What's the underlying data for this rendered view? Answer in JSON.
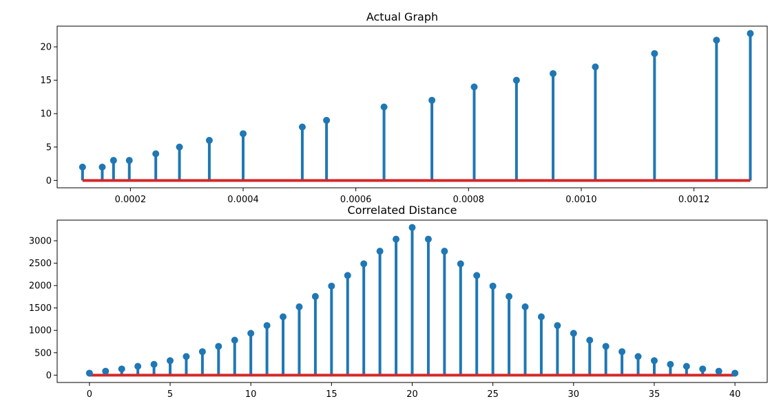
{
  "chart_data": [
    {
      "type": "stem",
      "title": "Actual Graph",
      "xlabel": "",
      "ylabel": "",
      "xlim": [
        7e-05,
        0.00133
      ],
      "ylim": [
        -1.1,
        23.1
      ],
      "xticks": [
        0.0002,
        0.0004,
        0.0006,
        0.0008,
        0.001,
        0.0012
      ],
      "xtick_labels": [
        "0.0002",
        "0.0004",
        "0.0006",
        "0.0008",
        "0.0010",
        "0.0012"
      ],
      "yticks": [
        0,
        5,
        10,
        15,
        20
      ],
      "ytick_labels": [
        "0",
        "5",
        "10",
        "15",
        "20"
      ],
      "stem_color": "#1f77b4",
      "baseline_color": "#d62728",
      "baseline": 0,
      "x": [
        0.000115,
        0.00015,
        0.00017,
        0.000198,
        0.000245,
        0.000287,
        0.00034,
        0.0004,
        0.000505,
        0.000548,
        0.00065,
        0.000735,
        0.00081,
        0.000885,
        0.00095,
        0.001025,
        0.00113,
        0.00124,
        0.0013
      ],
      "y": [
        2,
        2,
        3,
        3,
        4,
        5,
        6,
        7,
        8,
        9,
        11,
        12,
        14,
        15,
        16,
        17,
        19,
        21,
        22
      ]
    },
    {
      "type": "stem",
      "title": "Correlated Distance",
      "xlabel": "",
      "ylabel": "",
      "xlim": [
        -2,
        42
      ],
      "ylim": [
        -164,
        3461
      ],
      "xticks": [
        0,
        5,
        10,
        15,
        20,
        25,
        30,
        35,
        40
      ],
      "xtick_labels": [
        "0",
        "5",
        "10",
        "15",
        "20",
        "25",
        "30",
        "35",
        "40"
      ],
      "yticks": [
        0,
        500,
        1000,
        1500,
        2000,
        2500,
        3000
      ],
      "ytick_labels": [
        "0",
        "500",
        "1000",
        "1500",
        "2000",
        "2500",
        "3000"
      ],
      "stem_color": "#1f77b4",
      "baseline_color": "#d62728",
      "baseline": 0,
      "x": [
        0,
        1,
        2,
        3,
        4,
        5,
        6,
        7,
        8,
        9,
        10,
        11,
        12,
        13,
        14,
        15,
        16,
        17,
        18,
        19,
        20,
        21,
        22,
        23,
        24,
        25,
        26,
        27,
        28,
        29,
        30,
        31,
        32,
        33,
        34,
        35,
        36,
        37,
        38,
        39,
        40
      ],
      "y": [
        44,
        88,
        138,
        197,
        241,
        323,
        416,
        524,
        643,
        781,
        934,
        1108,
        1303,
        1526,
        1757,
        1989,
        2226,
        2486,
        2767,
        3037,
        3297,
        3037,
        2767,
        2486,
        2226,
        1989,
        1757,
        1526,
        1303,
        1108,
        934,
        781,
        643,
        524,
        416,
        323,
        241,
        197,
        138,
        88,
        44
      ]
    }
  ]
}
